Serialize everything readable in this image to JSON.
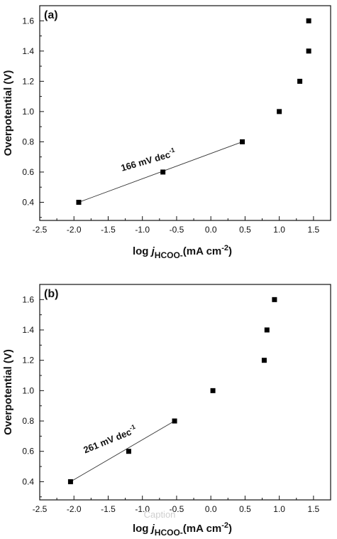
{
  "chart_data": [
    {
      "type": "scatter",
      "panel_label": "(a)",
      "xlabel": {
        "prefix": "log ",
        "j": "j",
        "sub": "HCOO-",
        "units": "(mA cm",
        "exp": "-2",
        "close": ")"
      },
      "ylabel": "Overpotential (V)",
      "xlim": [
        -2.5,
        1.75
      ],
      "ylim": [
        0.28,
        1.7
      ],
      "xticks": [
        "-2.5",
        "-2.0",
        "-1.5",
        "-1.0",
        "-0.5",
        "0.0",
        "0.5",
        "1.0",
        "1.5"
      ],
      "yticks": [
        "0.4",
        "0.6",
        "0.8",
        "1.0",
        "1.2",
        "1.4",
        "1.6"
      ],
      "series": [
        {
          "x": [
            -1.93,
            -0.7,
            0.46,
            1.0,
            1.3,
            1.43,
            1.43
          ],
          "y": [
            0.4,
            0.6,
            0.8,
            1.0,
            1.2,
            1.4,
            1.6
          ]
        }
      ],
      "fit": {
        "x": [
          -1.93,
          0.46
        ],
        "y": [
          0.4,
          0.8
        ]
      },
      "annotation": {
        "text": "166 mV dec",
        "sup": "-1"
      },
      "grid": false
    },
    {
      "type": "scatter",
      "panel_label": "(b)",
      "xlabel": {
        "prefix": "log ",
        "j": "j",
        "sub": "HCOO-",
        "units": "(mA cm",
        "exp": "-2",
        "close": ")"
      },
      "ylabel": "Overpotential (V)",
      "xlim": [
        -2.5,
        1.75
      ],
      "ylim": [
        0.28,
        1.7
      ],
      "xticks": [
        "-2.5",
        "-2.0",
        "-1.5",
        "-1.0",
        "-0.5",
        "0.0",
        "0.5",
        "1.0",
        "1.5"
      ],
      "yticks": [
        "0.4",
        "0.6",
        "0.8",
        "1.0",
        "1.2",
        "1.4",
        "1.6"
      ],
      "series": [
        {
          "x": [
            -2.05,
            -1.2,
            -0.53,
            0.03,
            0.78,
            0.82,
            0.93
          ],
          "y": [
            0.4,
            0.6,
            0.8,
            1.0,
            1.2,
            1.4,
            1.6
          ]
        }
      ],
      "fit": {
        "x": [
          -2.05,
          -0.53
        ],
        "y": [
          0.4,
          0.8
        ]
      },
      "annotation": {
        "text": "261 mV dec",
        "sup": "-1"
      },
      "grid": false
    }
  ],
  "watermark": "Caption",
  "colors": {
    "marker": "#000000",
    "fit_line": "#333333",
    "axis": "#111111"
  }
}
